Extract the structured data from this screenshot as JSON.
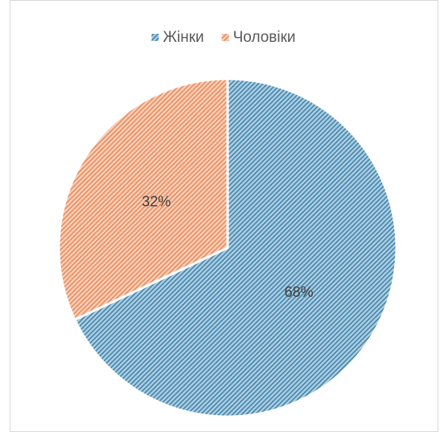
{
  "chart_data": {
    "type": "pie",
    "categories": [
      "Жінки",
      "Чоловіки"
    ],
    "values": [
      68,
      32
    ],
    "value_labels": [
      "68%",
      "32%"
    ],
    "colors": [
      "#3d85b0",
      "#ec8a57"
    ],
    "legend": "top",
    "fill": "hatch"
  }
}
